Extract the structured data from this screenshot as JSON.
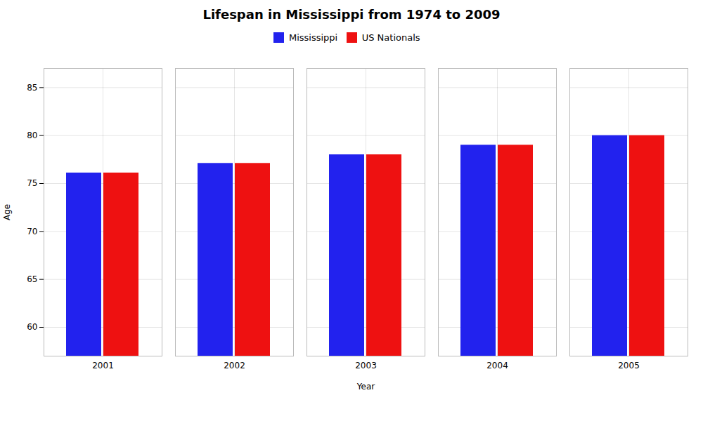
{
  "chart_data": {
    "type": "bar",
    "title": "Lifespan in Mississippi from 1974 to 2009",
    "xlabel": "Year",
    "ylabel": "Age",
    "categories": [
      "2001",
      "2002",
      "2003",
      "2004",
      "2005"
    ],
    "series": [
      {
        "name": "Mississippi",
        "color": "#2222ee",
        "values": [
          76.1,
          77.1,
          78.0,
          79.0,
          80.0
        ]
      },
      {
        "name": "US Nationals",
        "color": "#ee1111",
        "values": [
          76.1,
          77.1,
          78.0,
          79.0,
          80.0
        ]
      }
    ],
    "ylim": [
      57.0,
      87.0
    ],
    "yticks": [
      60,
      65,
      70,
      75,
      80,
      85
    ],
    "grid": true,
    "legend": "top"
  }
}
